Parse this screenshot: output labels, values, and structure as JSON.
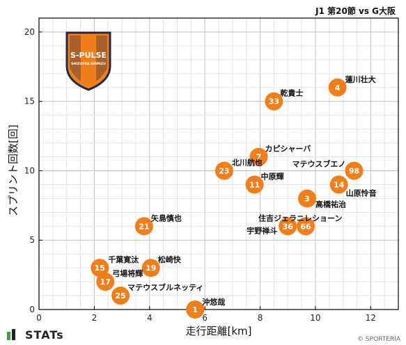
{
  "header": {
    "title": "J1 第20節 vs G大阪"
  },
  "logo": {
    "text": "S-PULSE",
    "subtext": "SHIZUOKA SHIMIZU",
    "colors": {
      "orange": "#F07F1B",
      "navy": "#1C2A4E"
    }
  },
  "footer": {
    "brand": "STATs",
    "copyright": "© SPORTERIA"
  },
  "chart_data": {
    "type": "scatter",
    "xlabel": "走行距離[km]",
    "ylabel": "スプリント回数[回]",
    "xlim": [
      0,
      13
    ],
    "ylim": [
      0,
      21
    ],
    "x_ticks": [
      0,
      2,
      4,
      6,
      8,
      10,
      12
    ],
    "y_ticks": [
      0,
      5,
      10,
      15,
      20
    ],
    "grid": true,
    "marker_color": "#F07F1B",
    "points": [
      {
        "number": "4",
        "name": "蓮川壮大",
        "x": 10.8,
        "y": 16
      },
      {
        "number": "33",
        "name": "乾貴士",
        "x": 8.5,
        "y": 15
      },
      {
        "number": "7",
        "name": "カピシャーバ",
        "x": 7.95,
        "y": 11
      },
      {
        "number": "23",
        "name": "北川航也",
        "x": 6.7,
        "y": 10
      },
      {
        "number": "11",
        "name": "中原輝",
        "x": 7.8,
        "y": 9
      },
      {
        "number": "98",
        "name": "マテウスブエノ",
        "x": 11.4,
        "y": 10
      },
      {
        "number": "14",
        "name": "山原怜音",
        "x": 10.85,
        "y": 9
      },
      {
        "number": "3",
        "name": "高橋祐治",
        "x": 9.7,
        "y": 8
      },
      {
        "number": "21",
        "name": "矢島慎也",
        "x": 3.8,
        "y": 6
      },
      {
        "number": "36",
        "name": "宇野禅斗",
        "x": 9.0,
        "y": 6
      },
      {
        "number": "66",
        "name": "住吉ジェラニレショーン",
        "x": 9.65,
        "y": 6
      },
      {
        "number": "15",
        "name": "千葉寛汰",
        "x": 2.2,
        "y": 3
      },
      {
        "number": "19",
        "name": "松崎快",
        "x": 4.05,
        "y": 3
      },
      {
        "number": "17",
        "name": "弓場将輝",
        "x": 2.4,
        "y": 2
      },
      {
        "number": "25",
        "name": "マテウスブルネッティ",
        "x": 2.95,
        "y": 1
      },
      {
        "number": "1",
        "name": "沖悠哉",
        "x": 5.65,
        "y": 0
      }
    ]
  }
}
